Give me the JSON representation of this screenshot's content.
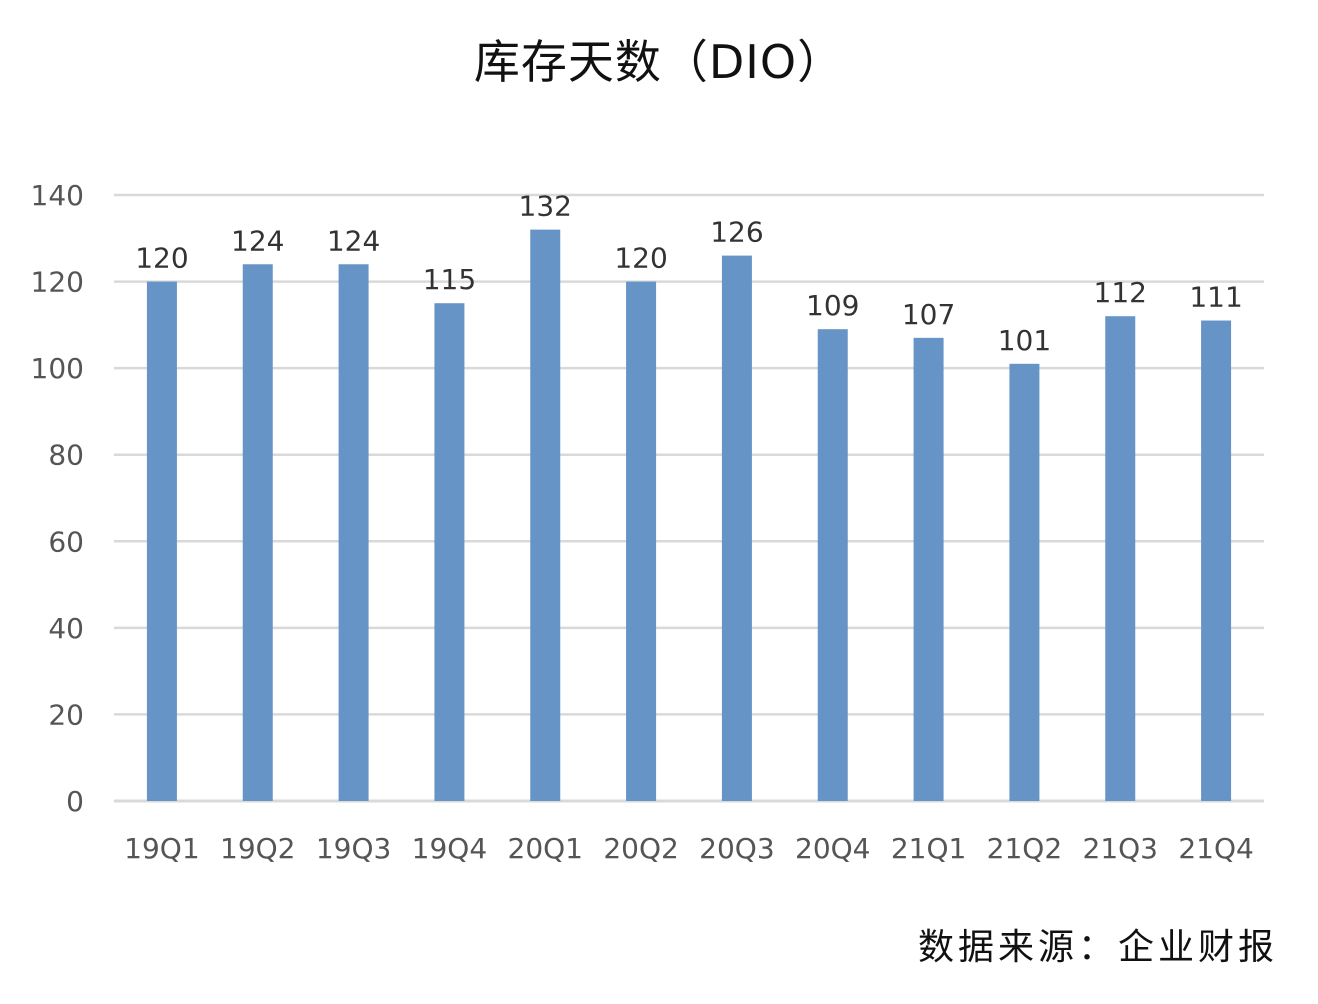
{
  "chart_data": {
    "type": "bar",
    "title": "库存天数（DIO）",
    "categories": [
      "19Q1",
      "19Q2",
      "19Q3",
      "19Q4",
      "20Q1",
      "20Q2",
      "20Q3",
      "20Q4",
      "21Q1",
      "21Q2",
      "21Q3",
      "21Q4"
    ],
    "values": [
      120,
      124,
      124,
      115,
      132,
      120,
      126,
      109,
      107,
      101,
      112,
      111
    ],
    "xlabel": "",
    "ylabel": "",
    "ylim": [
      0,
      140
    ],
    "yticks": [
      0,
      20,
      40,
      60,
      80,
      100,
      120,
      140
    ],
    "grid": true,
    "data_labels": true,
    "bar_color": "#6794C6",
    "grid_color": "#D9D9D9"
  },
  "source_note": "数据来源：企业财报"
}
